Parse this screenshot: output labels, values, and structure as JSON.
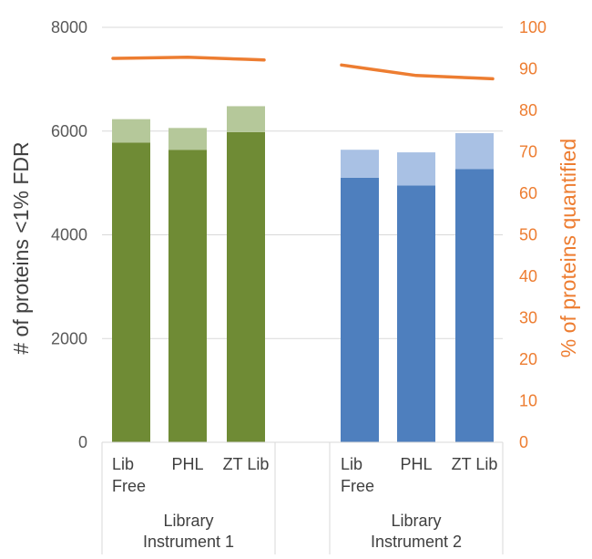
{
  "chart_data": {
    "type": "bar",
    "groups": [
      {
        "label_lines": [
          "Library",
          "Instrument 1"
        ],
        "color_base": "#6F8B35",
        "color_top": "#B5C89A",
        "categories": [
          [
            "Lib",
            "Free"
          ],
          [
            "PHL"
          ],
          [
            "ZT Lib"
          ]
        ],
        "base_values": [
          5780,
          5640,
          5980
        ],
        "total_values": [
          6230,
          6060,
          6480
        ],
        "pct_quantified": [
          92.6,
          92.8,
          92.3
        ]
      },
      {
        "label_lines": [
          "Library",
          "Instrument 2"
        ],
        "color_base": "#4E7FBE",
        "color_top": "#A9C1E4",
        "categories": [
          [
            "Lib",
            "Free"
          ],
          [
            "PHL"
          ],
          [
            "ZT Lib"
          ]
        ],
        "base_values": [
          5100,
          4950,
          5270
        ],
        "total_values": [
          5640,
          5590,
          5960
        ],
        "pct_quantified": [
          90.3,
          88.4,
          87.8
        ]
      }
    ],
    "ylabel": "# of proteins <1% FDR",
    "ylabel_right": "% of proteins quantified",
    "ylim": [
      0,
      8000
    ],
    "ylim_right": [
      0,
      100
    ],
    "yticks": [
      0,
      2000,
      4000,
      6000,
      8000
    ],
    "yticks_right": [
      0,
      10,
      20,
      30,
      40,
      50,
      60,
      70,
      80,
      90,
      100
    ],
    "line_color": "#ED7D31",
    "gridlines": true
  }
}
